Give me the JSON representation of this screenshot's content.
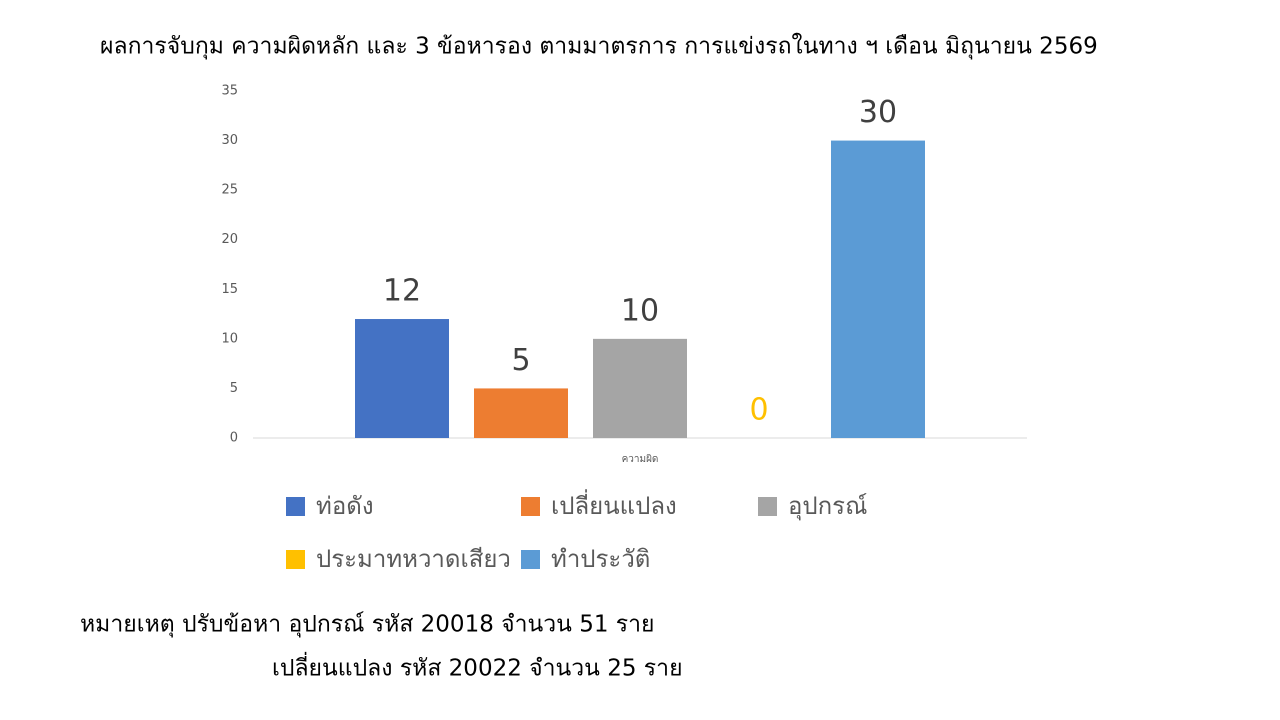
{
  "chart_data": {
    "type": "bar",
    "title": "ผลการจับกุม ความผิดหลัก และ 3 ข้อหารอง ตามมาตรการ การแข่งรถในทาง ฯ เดือน มิถุนายน  2569",
    "categories": [
      "ความผิด"
    ],
    "series": [
      {
        "name": "ท่อดัง",
        "color": "#4472c4",
        "label_color": "#404040",
        "values": [
          12
        ]
      },
      {
        "name": "เปลี่ยนแปลง",
        "color": "#ed7d31",
        "label_color": "#404040",
        "values": [
          5
        ]
      },
      {
        "name": "อุปกรณ์",
        "color": "#a5a5a5",
        "label_color": "#404040",
        "values": [
          10
        ]
      },
      {
        "name": "ประมาทหวาดเสียว",
        "color": "#ffc000",
        "label_color": "#ffc000",
        "values": [
          0
        ]
      },
      {
        "name": "ทำประวัติ",
        "color": "#5b9bd5",
        "label_color": "#404040",
        "values": [
          30
        ]
      }
    ],
    "ylim": [
      0,
      35
    ],
    "yticks": [
      0,
      5,
      10,
      15,
      20,
      25,
      30,
      35
    ],
    "grid": false,
    "legend": "bottom",
    "notes": [
      "หมายเหตุ  ปรับข้อหา อุปกรณ์  รหัส 20018 จำนวน 51 ราย",
      "เปลี่ยนแปลง รหัส 20022 จำนวน 25 ราย"
    ]
  }
}
